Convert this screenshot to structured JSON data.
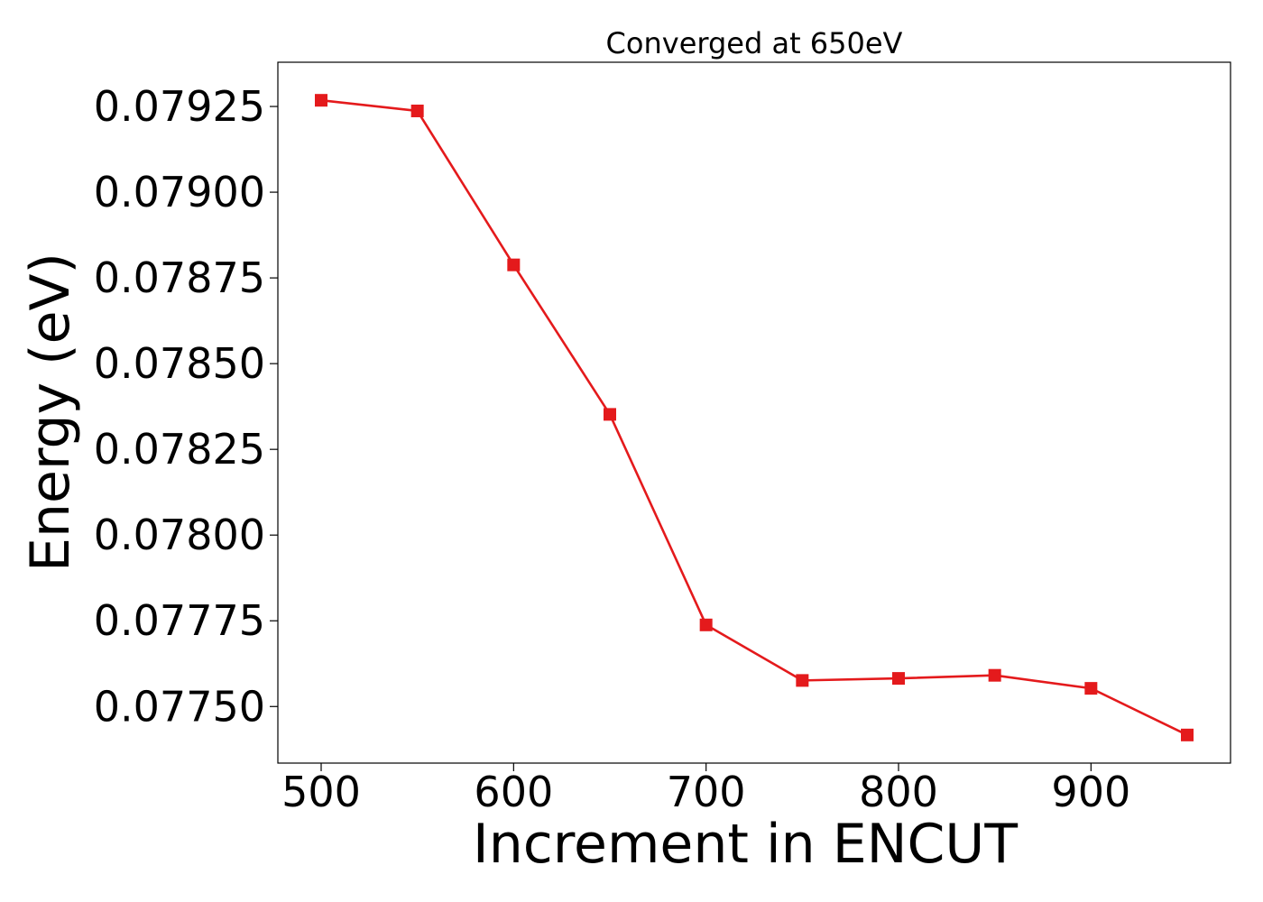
{
  "chart_data": {
    "type": "line",
    "title": "Converged at 650eV",
    "xlabel": "Increment in ENCUT",
    "ylabel": "Energy (eV)",
    "x": [
      500,
      550,
      600,
      650,
      700,
      750,
      800,
      850,
      900,
      950
    ],
    "series": [
      {
        "values": [
          0.079268,
          0.079237,
          0.078788,
          0.078352,
          0.077738,
          0.077576,
          0.077582,
          0.077591,
          0.077553,
          0.077417
        ],
        "color": "#e41a1c",
        "marker": "square"
      }
    ],
    "xlim": [
      477.5,
      972.5
    ],
    "ylim": [
      0.077335,
      0.079379
    ],
    "xticks": [
      500,
      600,
      700,
      800,
      900
    ],
    "xtick_labels": [
      "500",
      "600",
      "700",
      "800",
      "900"
    ],
    "yticks": [
      0.0775,
      0.07775,
      0.078,
      0.07825,
      0.0785,
      0.07875,
      0.079,
      0.07925
    ],
    "ytick_labels": [
      "0.07750",
      "0.07775",
      "0.07800",
      "0.07825",
      "0.07850",
      "0.07875",
      "0.07900",
      "0.07925"
    ],
    "grid": false,
    "legend": "none"
  }
}
